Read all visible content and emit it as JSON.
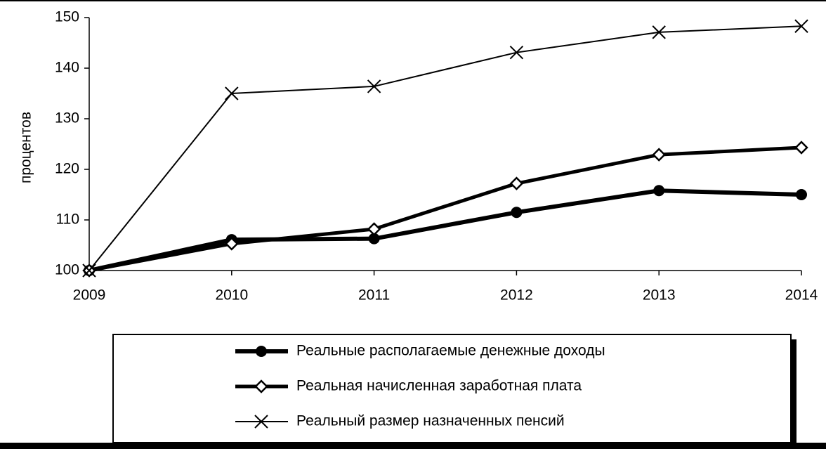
{
  "chart_data": {
    "type": "line",
    "y_label": "процентов",
    "x": [
      2009,
      2010,
      2011,
      2012,
      2013,
      2014
    ],
    "xlim": [
      2009,
      2014
    ],
    "xticks": [
      2009,
      2010,
      2011,
      2012,
      2013,
      2014
    ],
    "ylim": [
      100,
      150
    ],
    "yticks": [
      100,
      110,
      120,
      130,
      140,
      150
    ],
    "legend": "bottom",
    "series": [
      {
        "name": "Реальные располагаемые денежные доходы",
        "color": "#000000",
        "marker": "circle",
        "line_width": 6,
        "values": [
          100,
          106.1,
          106.3,
          111.5,
          115.8,
          115.0
        ]
      },
      {
        "name": "Реальная начисленная заработная плата",
        "color": "#000000",
        "marker": "diamond",
        "line_width": 5,
        "values": [
          100,
          105.3,
          108.2,
          117.2,
          122.9,
          124.3
        ]
      },
      {
        "name": "Реальный размер назначенных пенсий",
        "color": "#000000",
        "marker": "cross",
        "line_width": 2,
        "values": [
          100,
          135.0,
          136.4,
          143.1,
          147.1,
          148.3
        ]
      }
    ]
  }
}
